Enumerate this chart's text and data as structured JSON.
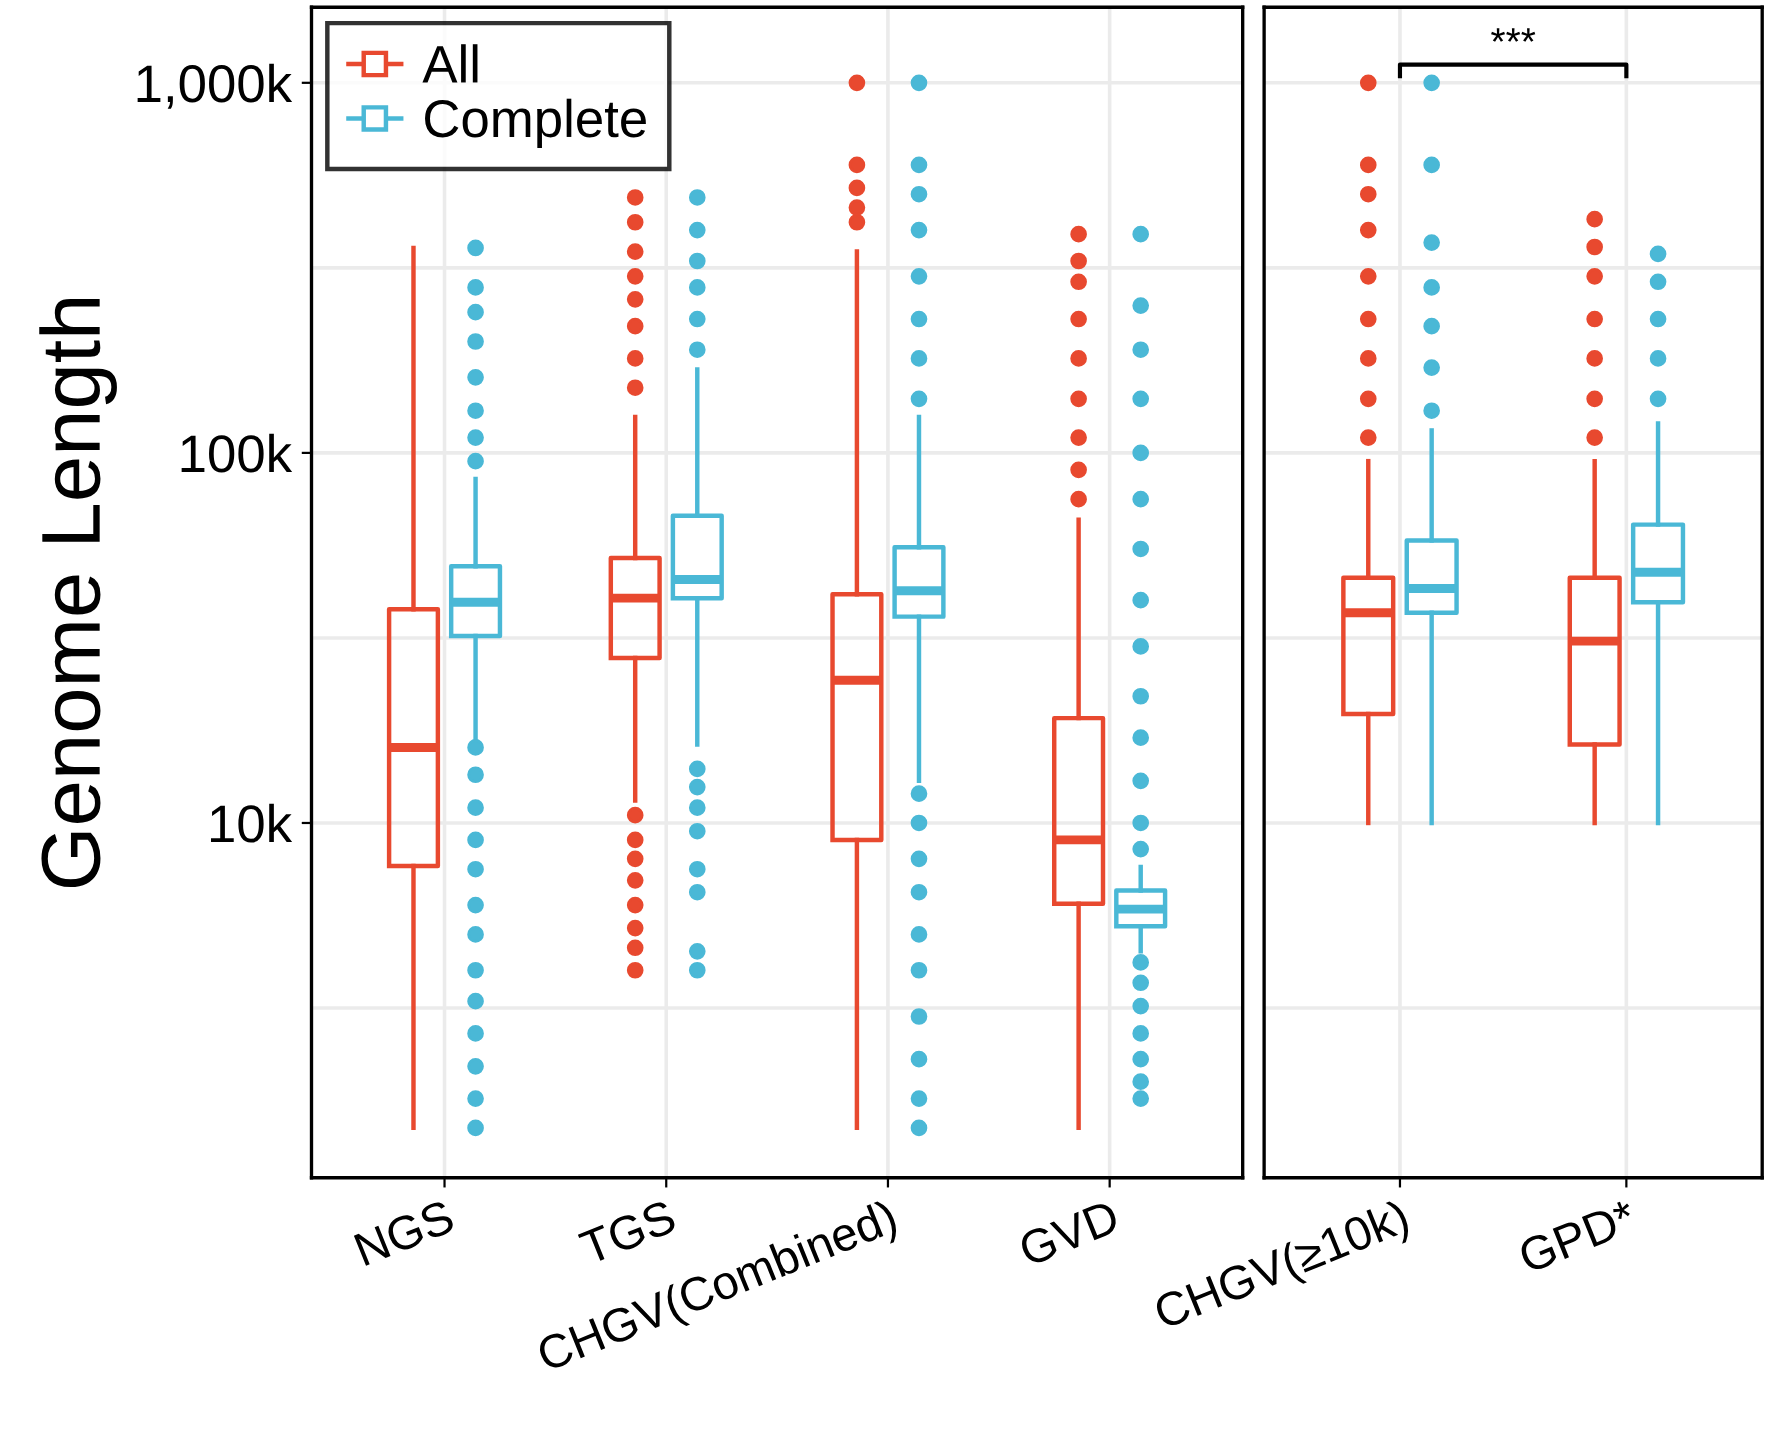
{
  "chart_data": [
    {
      "type": "box",
      "ylabel": "Genome Length",
      "categories": [
        "NGS",
        "TGS",
        "CHGV(Combined)",
        "GVD"
      ],
      "log": true,
      "ylim": [
        1100,
        1600000
      ],
      "yticks": [
        {
          "value": 3162,
          "label": null
        },
        {
          "value": 10000,
          "label": "10k"
        },
        {
          "value": 31623,
          "label": null
        },
        {
          "value": 100000,
          "label": "100k"
        },
        {
          "value": 316228,
          "label": null
        },
        {
          "value": 1000000,
          "label": "1,000k"
        }
      ],
      "grid": true,
      "legend": "top left",
      "series": [
        {
          "name": "All",
          "color": "#e8492f",
          "boxes": [
            {
              "low": 1500,
              "q1": 7650,
              "median": 16000,
              "q3": 37800,
              "high": 358000
            },
            {
              "low": 11500,
              "q1": 27900,
              "median": 40500,
              "q3": 52000,
              "high": 125000,
              "outliers": [
                4000,
                4600,
                5200,
                6000,
                7000,
                8000,
                9000,
                10500,
                150000,
                180000,
                220000,
                260000,
                300000,
                350000,
                420000,
                490000
              ]
            },
            {
              "low": 1500,
              "q1": 9000,
              "median": 24300,
              "q3": 41500,
              "high": 350000,
              "outliers": [
                420000,
                460000,
                520000,
                600000,
                1000000
              ]
            },
            {
              "low": 1500,
              "q1": 6050,
              "median": 9000,
              "q3": 19200,
              "high": 66000,
              "outliers": [
                75000,
                90000,
                110000,
                140000,
                180000,
                230000,
                290000,
                330000,
                390000
              ]
            }
          ]
        },
        {
          "name": "Complete",
          "color": "#4ab8d6",
          "boxes": [
            {
              "low": 17000,
              "q1": 32000,
              "median": 39500,
              "q3": 49400,
              "high": 85000,
              "outliers": [
                1500,
                1800,
                2200,
                2700,
                3300,
                4000,
                5000,
                6000,
                7500,
                9000,
                11000,
                13500,
                16000,
                95000,
                110000,
                130000,
                160000,
                200000,
                240000,
                280000,
                358000
              ]
            },
            {
              "low": 16300,
              "q1": 40500,
              "median": 45500,
              "q3": 67600,
              "high": 168000,
              "outliers": [
                4000,
                4500,
                6500,
                7500,
                9500,
                11000,
                12500,
                14000,
                190000,
                230000,
                280000,
                330000,
                400000,
                490000
              ]
            },
            {
              "low": 13000,
              "q1": 36100,
              "median": 42400,
              "q3": 55600,
              "high": 125000,
              "outliers": [
                1500,
                1800,
                2300,
                3000,
                4000,
                5000,
                6500,
                8000,
                10000,
                12000,
                140000,
                180000,
                230000,
                300000,
                400000,
                500000,
                600000,
                1000000
              ]
            },
            {
              "low": 4500,
              "q1": 5260,
              "median": 5850,
              "q3": 6570,
              "high": 7600,
              "outliers": [
                1800,
                2000,
                2300,
                2700,
                3200,
                3700,
                4200,
                8500,
                10000,
                13000,
                17000,
                22000,
                30000,
                40000,
                55000,
                75000,
                100000,
                140000,
                190000,
                250000,
                390000
              ]
            }
          ]
        }
      ]
    },
    {
      "type": "box",
      "categories": [
        "CHGV(≥10k)",
        "GPD*"
      ],
      "log": true,
      "ylim": [
        1100,
        1600000
      ],
      "yticks": [
        {
          "value": 3162,
          "label": null
        },
        {
          "value": 10000,
          "label": null
        },
        {
          "value": 31623,
          "label": null
        },
        {
          "value": 100000,
          "label": null
        },
        {
          "value": 316228,
          "label": null
        },
        {
          "value": 1000000,
          "label": null
        }
      ],
      "grid": true,
      "tick_labels": "x",
      "annotations": [
        "***"
      ],
      "series": [
        {
          "color": "#e8492f",
          "boxes": [
            {
              "low": 10000,
              "q1": 19700,
              "median": 37000,
              "q3": 46000,
              "high": 95000,
              "outliers": [
                110000,
                140000,
                180000,
                230000,
                300000,
                400000,
                500000,
                600000,
                1000000
              ]
            },
            {
              "low": 10000,
              "q1": 16300,
              "median": 31000,
              "q3": 46000,
              "high": 95000,
              "outliers": [
                110000,
                140000,
                180000,
                230000,
                300000,
                360000,
                428000
              ]
            }
          ]
        },
        {
          "color": "#4ab8d6",
          "boxes": [
            {
              "low": 10000,
              "q1": 37000,
              "median": 43000,
              "q3": 58000,
              "high": 115000,
              "outliers": [
                130000,
                170000,
                220000,
                280000,
                370000,
                600000,
                1000000
              ]
            },
            {
              "low": 10000,
              "q1": 39500,
              "median": 47600,
              "q3": 64000,
              "high": 120000,
              "outliers": [
                140000,
                180000,
                230000,
                290000,
                345000
              ]
            }
          ]
        }
      ]
    }
  ]
}
